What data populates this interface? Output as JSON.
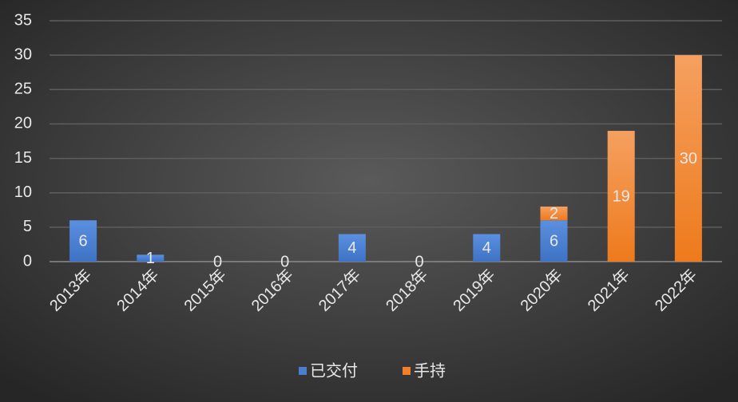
{
  "chart_data": {
    "type": "stacked-bar",
    "categories": [
      "2013年",
      "2014年",
      "2015年",
      "2016年",
      "2017年",
      "2018年",
      "2019年",
      "2020年",
      "2021年",
      "2022年"
    ],
    "series": [
      {
        "name": "已交付",
        "color": "#4a7fd0",
        "values": [
          6,
          1,
          0,
          0,
          4,
          0,
          4,
          6,
          null,
          null
        ]
      },
      {
        "name": "手持",
        "color": "#f0812a",
        "values": [
          null,
          null,
          null,
          null,
          null,
          null,
          null,
          2,
          19,
          30
        ]
      }
    ],
    "ylim": [
      0,
      35
    ],
    "yticks": [
      0,
      5,
      10,
      15,
      20,
      25,
      30,
      35
    ],
    "grid": true,
    "legend": "bottom"
  }
}
